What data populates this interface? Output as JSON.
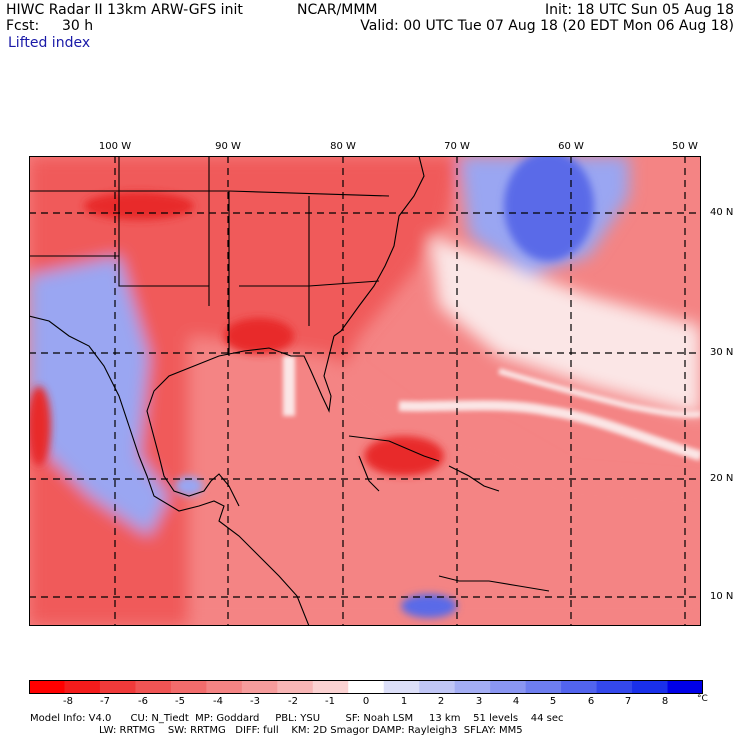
{
  "header": {
    "title": "HIWC Radar II 13km ARW-GFS init",
    "org": "NCAR/MMM",
    "init": "Init: 18 UTC Sun 05 Aug 18",
    "fcst_label": "Fcst:",
    "fcst_value": "30 h",
    "valid": "Valid: 00 UTC Tue 07 Aug 18 (20 EDT Mon 06 Aug 18)",
    "field": "Lifted index"
  },
  "map": {
    "lon_labels": [
      "100 W",
      "90 W",
      "80 W",
      "70 W",
      "60 W",
      "50 W"
    ],
    "lat_labels": [
      "40 N",
      "30 N",
      "20 N",
      "10 N"
    ],
    "colors": {
      "land_warm": "#f05a5a",
      "sea_warm": "#f48484",
      "deep_warm": "#e82a2a",
      "cool": "#9aa6f2",
      "cold_core": "#5a6ae8",
      "neutral": "#fbe6e6"
    }
  },
  "colorbar": {
    "labels": [
      "-8",
      "-7",
      "-6",
      "-5",
      "-4",
      "-3",
      "-2",
      "-1",
      "0",
      "1",
      "2",
      "3",
      "4",
      "5",
      "6",
      "7",
      "8"
    ],
    "unit": "°C",
    "colors": [
      "#ff0000",
      "#f41c1c",
      "#f03a3a",
      "#f05454",
      "#f26c6c",
      "#f48484",
      "#f69c9c",
      "#f8b6b6",
      "#fbd2d2",
      "#ffffff",
      "#dcdff8",
      "#c0c6f6",
      "#a4aef4",
      "#8a96f2",
      "#6e7ef0",
      "#5264ee",
      "#3448ec",
      "#1a30ea",
      "#0000e8"
    ]
  },
  "footer": {
    "line1": "Model Info: V4.0      CU: N_Tiedt  MP: Goddard     PBL: YSU        SF: Noah LSM     13 km    51 levels    44 sec",
    "line2": "LW: RRTMG    SW: RRTMG   DIFF: full    KM: 2D Smagor DAMP: Rayleigh3  SFLAY: MM5"
  }
}
